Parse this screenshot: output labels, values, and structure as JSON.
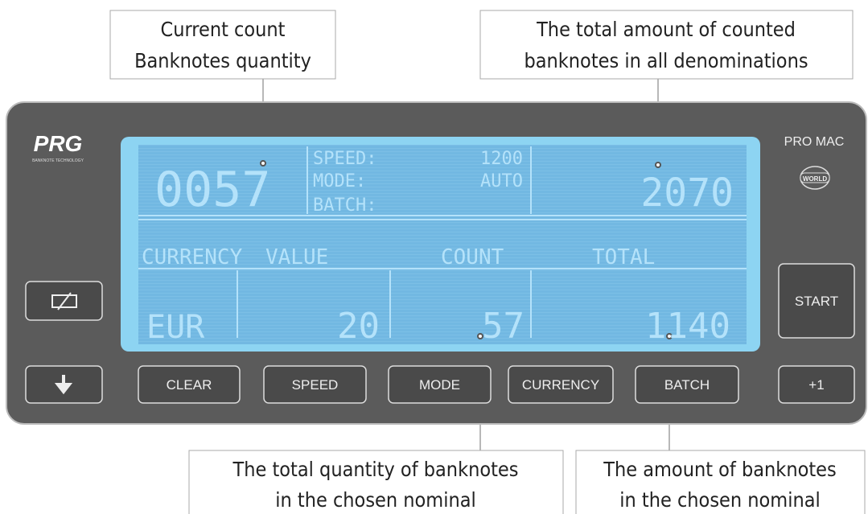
{
  "callouts": [
    {
      "lines": [
        "Current count",
        "Banknotes quantity"
      ]
    },
    {
      "lines": [
        "The total amount of counted",
        "banknotes in all denominations"
      ]
    },
    {
      "lines": [
        "The total quantity of banknotes",
        "in the chosen nominal"
      ]
    },
    {
      "lines": [
        "The amount of banknotes",
        "in the chosen nominal"
      ]
    }
  ],
  "brand": {
    "logo": "PRG",
    "tagline": "BANKNOTE TECHNOLOGY",
    "model": "PRO MAC",
    "badge": "WORLD"
  },
  "display": {
    "count": "0057",
    "settings": [
      {
        "label": "SPEED:",
        "value": "1200"
      },
      {
        "label": "MODE:",
        "value": "AUTO"
      },
      {
        "label": "BATCH:"
      }
    ],
    "total": "2070",
    "headers": [
      "CURRENCY",
      "VALUE",
      "COUNT",
      "TOTAL"
    ],
    "row": [
      "EUR",
      "20",
      "57",
      "1140"
    ]
  },
  "buttons": {
    "bottom": [
      "CLEAR",
      "SPEED",
      "MODE",
      "CURRENCY",
      "BATCH",
      "+1"
    ],
    "side": "START"
  }
}
